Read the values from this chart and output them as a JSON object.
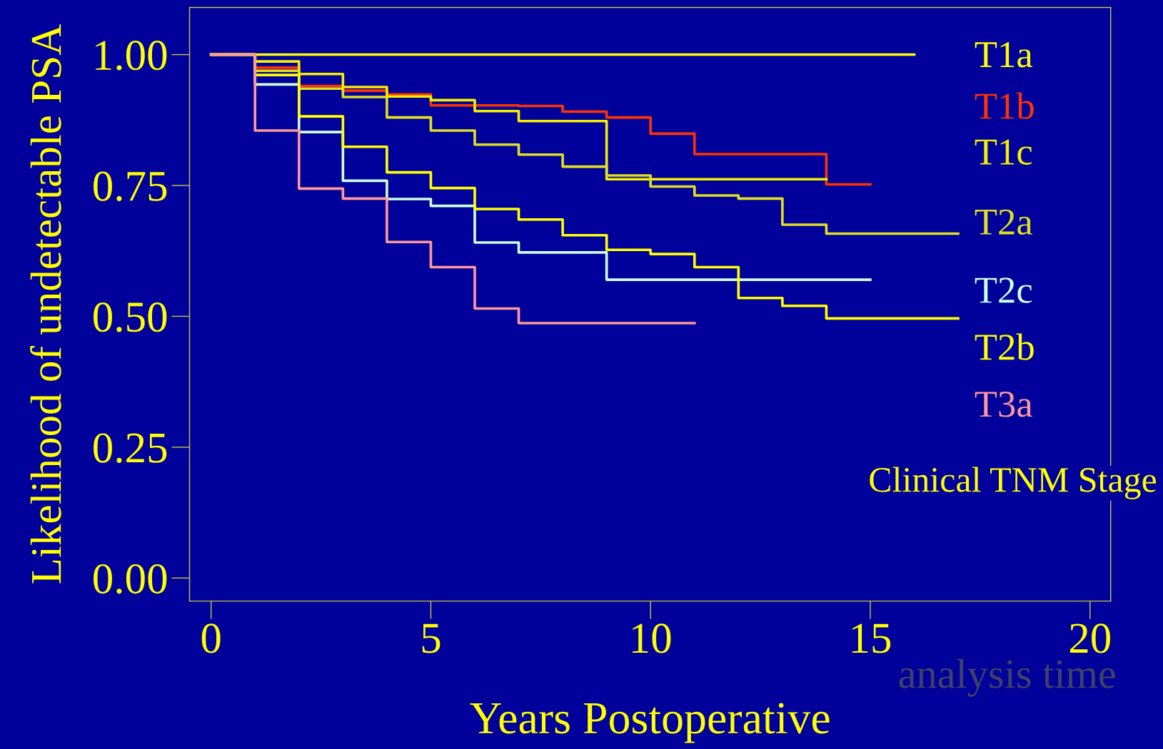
{
  "chart_data": {
    "type": "step",
    "ylabel": "Likelihood of undetectable PSA",
    "xlabel": "Years Postoperative",
    "legend_title": "Clinical TNM Stage",
    "annotations": [
      "analysis time"
    ],
    "xlim": [
      -0.49,
      20.47
    ],
    "ylim": [
      -0.044,
      1.09
    ],
    "xticks": [
      0,
      5,
      10,
      15,
      20
    ],
    "yticks": [
      {
        "value": 0,
        "label": "0.00"
      },
      {
        "value": 0.25,
        "label": "0.25"
      },
      {
        "value": 0.5,
        "label": "0.50"
      },
      {
        "value": 0.75,
        "label": "0.75"
      },
      {
        "value": 1,
        "label": "1.00"
      }
    ],
    "grid": false,
    "legend": "right",
    "marker": "none",
    "line_style": "solid",
    "series": [
      {
        "name": "T1a",
        "color": "#ffff00",
        "x": [
          0,
          16
        ],
        "values": [
          1.0,
          1.0
        ]
      },
      {
        "name": "T1b",
        "color": "#ff3300",
        "x": [
          0,
          1,
          2,
          3,
          4,
          5,
          6,
          7,
          8,
          9,
          10,
          11,
          12,
          13,
          14,
          15
        ],
        "values": [
          1.0,
          0.975,
          0.94,
          0.931,
          0.924,
          0.903,
          0.903,
          0.902,
          0.891,
          0.88,
          0.849,
          0.81,
          0.81,
          0.81,
          0.752,
          0.752
        ]
      },
      {
        "name": "T1c",
        "color": "#f4f000",
        "x": [
          0,
          1,
          2,
          3,
          4,
          5,
          6,
          7,
          8,
          9,
          10,
          11,
          12,
          13,
          14
        ],
        "values": [
          1.0,
          0.987,
          0.963,
          0.938,
          0.92,
          0.913,
          0.892,
          0.873,
          0.873,
          0.762,
          0.762,
          0.762,
          0.762,
          0.762,
          0.762
        ]
      },
      {
        "name": "T2a",
        "color": "#e0e020",
        "x": [
          0,
          1,
          2,
          3,
          4,
          5,
          6,
          7,
          8,
          9,
          10,
          11,
          12,
          13,
          14,
          15,
          16,
          17
        ],
        "values": [
          1.0,
          0.969,
          0.935,
          0.919,
          0.88,
          0.855,
          0.828,
          0.809,
          0.786,
          0.769,
          0.748,
          0.731,
          0.725,
          0.675,
          0.658,
          0.658,
          0.658,
          0.658
        ]
      },
      {
        "name": "T2c",
        "color": "#ccffdd",
        "x": [
          0,
          1,
          2,
          3,
          4,
          5,
          6,
          7,
          8,
          9,
          10,
          11,
          12,
          13,
          14,
          15
        ],
        "values": [
          1.0,
          0.943,
          0.852,
          0.759,
          0.724,
          0.711,
          0.641,
          0.622,
          0.622,
          0.57,
          0.57,
          0.57,
          0.57,
          0.57,
          0.57,
          0.57
        ]
      },
      {
        "name": "T2b",
        "color": "#ffff00",
        "x": [
          0,
          1,
          2,
          3,
          4,
          5,
          6,
          7,
          8,
          9,
          10,
          11,
          12,
          13,
          14,
          15,
          16,
          17
        ],
        "values": [
          1.0,
          0.961,
          0.882,
          0.824,
          0.775,
          0.745,
          0.705,
          0.685,
          0.655,
          0.627,
          0.619,
          0.594,
          0.535,
          0.52,
          0.496,
          0.496,
          0.496,
          0.496
        ]
      },
      {
        "name": "T3a",
        "color": "#ff9999",
        "x": [
          0,
          1,
          2,
          3,
          4,
          5,
          6,
          7,
          8,
          9,
          10,
          11
        ],
        "values": [
          1.0,
          0.855,
          0.744,
          0.725,
          0.642,
          0.594,
          0.515,
          0.487,
          0.487,
          0.487,
          0.487,
          0.487
        ]
      }
    ]
  }
}
